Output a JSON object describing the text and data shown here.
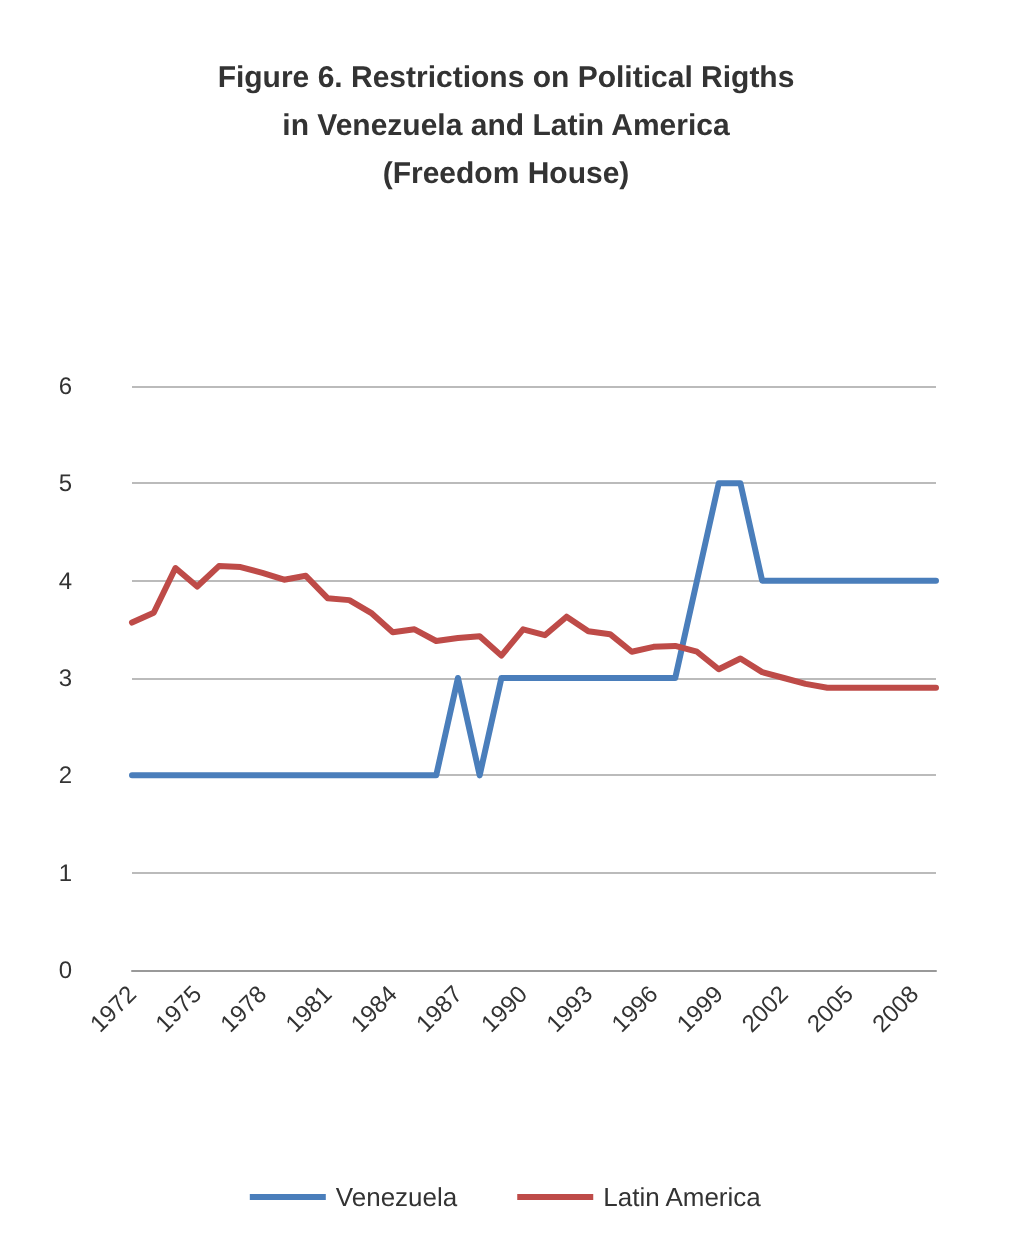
{
  "chart_data": {
    "type": "line",
    "title": "Figure 6. Restrictions on Political Rigths\nin Venezuela and Latin America\n(Freedom House)",
    "categories": [
      "1972",
      null,
      null,
      "1975",
      null,
      null,
      "1978",
      null,
      null,
      "1981",
      null,
      null,
      "1984",
      null,
      null,
      "1987",
      null,
      null,
      "1990",
      null,
      null,
      "1993",
      null,
      null,
      "1996",
      null,
      null,
      "1999",
      null,
      null,
      "2002",
      null,
      null,
      "2005",
      null,
      null,
      "2008",
      null
    ],
    "series": [
      {
        "name": "Venezuela",
        "color": "#4a7ebb",
        "values": [
          2,
          2,
          2,
          2,
          2,
          2,
          2,
          2,
          2,
          2,
          2,
          2,
          2,
          2,
          2,
          3,
          2,
          3,
          3,
          3,
          3,
          3,
          3,
          3,
          3,
          3,
          4,
          5,
          5,
          4,
          4,
          4,
          4,
          4,
          4,
          4,
          4,
          4
        ]
      },
      {
        "name": "Latin America",
        "color": "#be4b48",
        "values": [
          3.57,
          3.67,
          4.13,
          3.94,
          4.15,
          4.14,
          4.08,
          4.01,
          4.05,
          3.82,
          3.8,
          3.67,
          3.47,
          3.5,
          3.38,
          3.41,
          3.43,
          3.23,
          3.5,
          3.44,
          3.63,
          3.48,
          3.45,
          3.27,
          3.32,
          3.33,
          3.27,
          3.09,
          3.2,
          3.06,
          3.0,
          2.94,
          2.9,
          2.9,
          2.9,
          2.9,
          2.9,
          2.9
        ]
      }
    ],
    "ylim": [
      0,
      6
    ],
    "yticks": [
      0,
      1,
      2,
      3,
      4,
      5,
      6
    ],
    "grid": "y",
    "legend": "bottom",
    "marker": "none",
    "line_style": "solid"
  }
}
